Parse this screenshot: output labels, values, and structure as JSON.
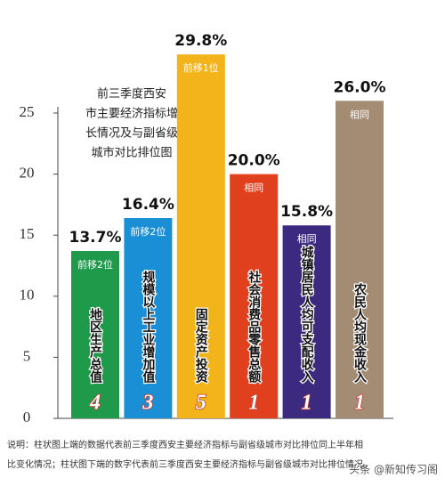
{
  "chart_data": {
    "type": "bar",
    "title_lines": [
      "前三季度西安",
      "市主要经济指标增",
      "长情况及与副省级",
      "城市对比排位图"
    ],
    "categories": [
      "地区生产总值",
      "规模以上工业增加值",
      "固定资产投资",
      "社会消费品零售总额",
      "城镇居民人均可支配收入",
      "农民人均现金收入"
    ],
    "values": [
      13.7,
      16.4,
      29.8,
      20.0,
      15.8,
      26.0
    ],
    "value_labels": [
      "13.7%",
      "16.4%",
      "29.8%",
      "20.0%",
      "15.8%",
      "26.0%"
    ],
    "rank_changes": [
      "前移2位",
      "前移2位",
      "前移1位",
      "相同",
      "相同",
      "相同"
    ],
    "ranks": [
      4,
      3,
      5,
      1,
      1,
      1
    ],
    "colors": [
      "#1f9a4a",
      "#1a8fd6",
      "#f2b31b",
      "#e0401e",
      "#3b2a80",
      "#a48b73"
    ],
    "ylim": [
      0,
      25
    ],
    "yticks": [
      0,
      5,
      10,
      15,
      20,
      25
    ],
    "note_lines": [
      "说明：柱状图上端的数据代表前三季度西安主要经济指标与副省级城市对比排位同上半年相",
      "比变化情况；柱状图下端的数字代表前三季度西安主要经济指标与副省级城市对比排位情况。"
    ],
    "watermark": "头条 @新知传习阁"
  }
}
